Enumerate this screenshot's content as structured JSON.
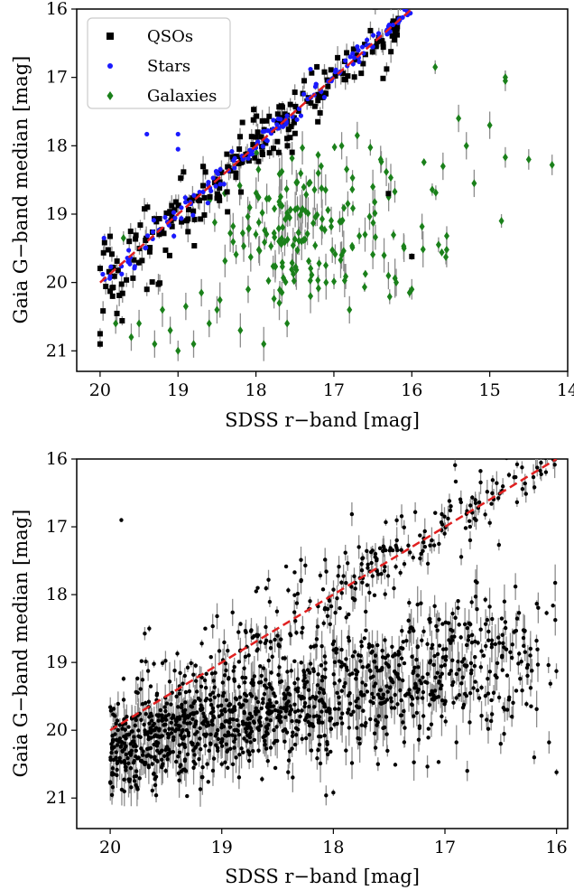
{
  "chart_data": [
    {
      "id": "top",
      "type": "scatter",
      "xlabel": "SDSS r−band [mag]",
      "ylabel": "Gaia G−band median [mag]",
      "xlim": [
        20.3,
        14.0
      ],
      "ylim": [
        21.3,
        16.0
      ],
      "x_ticks": [
        "20",
        "19",
        "18",
        "17",
        "16",
        "15",
        "14"
      ],
      "y_ticks": [
        "16",
        "17",
        "18",
        "19",
        "20",
        "21"
      ],
      "x_tick_values": [
        20,
        19,
        18,
        17,
        16,
        15,
        14
      ],
      "y_tick_values": [
        16,
        17,
        18,
        19,
        20,
        21
      ],
      "legend": {
        "placement": "top-left"
      },
      "reference_line": {
        "style": "dashed",
        "color": "#e02020",
        "points": [
          [
            20.0,
            20.0
          ],
          [
            16.0,
            16.0
          ]
        ]
      },
      "series": [
        {
          "name": "QSOs",
          "marker": "square",
          "color": "#000000",
          "generated": {
            "kind": "band",
            "count": 230,
            "x_range": [
              16.1,
              20.0
            ],
            "offset_spread": 0.38,
            "offset_bias": 0.05,
            "err_max": 0.18,
            "seed": 11
          },
          "points": [
            [
              20.0,
              20.75,
              0.08
            ],
            [
              20.0,
              20.9,
              0.06
            ],
            [
              16.0,
              19.62,
              0.05
            ],
            [
              16.3,
              18.7,
              0.07
            ],
            [
              19.4,
              20.1,
              0.1
            ]
          ]
        },
        {
          "name": "Stars",
          "marker": "dot",
          "color": "#1a1aff",
          "generated": {
            "kind": "band",
            "count": 150,
            "x_range": [
              16.0,
              19.98
            ],
            "offset_spread": 0.12,
            "offset_bias": 0.0,
            "err_max": 0.05,
            "seed": 23
          },
          "points": [
            [
              19.4,
              17.83,
              0.02
            ],
            [
              19.0,
              17.83,
              0.02
            ],
            [
              19.0,
              18.05,
              0.02
            ],
            [
              16.5,
              16.55,
              0.02
            ],
            [
              16.7,
              16.55,
              0.02
            ],
            [
              17.3,
              16.88,
              0.02
            ],
            [
              19.95,
              19.35,
              0.02
            ]
          ]
        },
        {
          "name": "Galaxies",
          "marker": "diamond",
          "color": "#1a801a",
          "generated": {
            "kind": "cluster",
            "count": 170,
            "center": [
              17.5,
              19.3
            ],
            "spread": [
              0.45,
              0.42
            ],
            "err_max": 0.3,
            "seed": 37
          },
          "points": [
            [
              15.7,
              16.85,
              0.1
            ],
            [
              14.8,
              17.05,
              0.15
            ],
            [
              14.8,
              17.0,
              0.1
            ],
            [
              15.4,
              17.6,
              0.2
            ],
            [
              14.5,
              18.2,
              0.15
            ],
            [
              14.2,
              18.28,
              0.15
            ],
            [
              14.8,
              18.17,
              0.15
            ],
            [
              15.0,
              17.7,
              0.2
            ],
            [
              15.3,
              18.0,
              0.2
            ],
            [
              15.6,
              18.3,
              0.2
            ],
            [
              15.2,
              18.55,
              0.2
            ],
            [
              14.85,
              19.1,
              0.1
            ],
            [
              16.0,
              20.1,
              0.15
            ],
            [
              16.1,
              19.5,
              0.2
            ],
            [
              16.4,
              18.2,
              0.2
            ],
            [
              16.7,
              17.85,
              0.2
            ],
            [
              16.5,
              18.6,
              0.25
            ],
            [
              16.9,
              18.0,
              0.2
            ],
            [
              17.2,
              18.4,
              0.3
            ],
            [
              16.3,
              19.9,
              0.2
            ],
            [
              16.6,
              19.3,
              0.25
            ],
            [
              16.8,
              20.4,
              0.2
            ],
            [
              17.1,
              20.0,
              0.25
            ],
            [
              18.5,
              20.4,
              0.2
            ],
            [
              18.9,
              20.35,
              0.2
            ],
            [
              19.2,
              20.4,
              0.25
            ],
            [
              19.5,
              20.6,
              0.2
            ],
            [
              19.8,
              20.6,
              0.15
            ],
            [
              19.6,
              20.8,
              0.2
            ],
            [
              19.3,
              20.9,
              0.2
            ],
            [
              18.6,
              20.6,
              0.2
            ],
            [
              18.2,
              20.7,
              0.25
            ],
            [
              17.9,
              20.9,
              0.25
            ],
            [
              18.8,
              20.9,
              0.2
            ],
            [
              19.1,
              20.7,
              0.2
            ],
            [
              19.0,
              21.0,
              0.15
            ],
            [
              17.7,
              20.3,
              0.25
            ],
            [
              18.1,
              20.1,
              0.2
            ],
            [
              17.3,
              20.2,
              0.25
            ],
            [
              17.6,
              20.6,
              0.2
            ],
            [
              19.7,
              19.35,
              0.1
            ],
            [
              18.7,
              20.15,
              0.2
            ],
            [
              16.2,
              20.0,
              0.2
            ],
            [
              16.9,
              19.6,
              0.2
            ]
          ]
        }
      ]
    },
    {
      "id": "bottom",
      "type": "scatter",
      "xlabel": "SDSS r−band [mag]",
      "ylabel": "Gaia G−band median [mag]",
      "xlim": [
        20.3,
        15.9
      ],
      "ylim": [
        21.45,
        16.0
      ],
      "x_ticks": [
        "20",
        "19",
        "18",
        "17",
        "16"
      ],
      "y_ticks": [
        "16",
        "17",
        "18",
        "19",
        "20",
        "21"
      ],
      "x_tick_values": [
        20,
        19,
        18,
        17,
        16
      ],
      "y_tick_values": [
        16,
        17,
        18,
        19,
        20,
        21
      ],
      "reference_line": {
        "style": "dashed",
        "color": "#e02020",
        "points": [
          [
            20.0,
            20.0
          ],
          [
            16.0,
            16.0
          ]
        ]
      },
      "series": [
        {
          "name": "",
          "marker": "dot",
          "color": "#000000",
          "generated": {
            "kind": "band",
            "count": 320,
            "x_range": [
              16.0,
              20.0
            ],
            "offset_spread": 0.45,
            "offset_bias": -0.05,
            "err_max": 0.2,
            "seed": 51
          },
          "points": []
        },
        {
          "name": "",
          "marker": "dot",
          "color": "#000000",
          "generated": {
            "kind": "linear-cluster",
            "count": 1200,
            "x_range": [
              16.0,
              20.0
            ],
            "y_at_x0": 20.3,
            "y_at_x1": 18.7,
            "x0": 20.0,
            "x1": 16.0,
            "spread": 0.42,
            "err_max": 0.3,
            "seed": 67
          },
          "points": [
            [
              19.9,
              16.9,
              0.03
            ],
            [
              19.0,
              20.5,
              0.05
            ],
            [
              18.0,
              20.92,
              0.05
            ],
            [
              17.6,
              20.5,
              0.1
            ],
            [
              16.0,
              20.62,
              0.05
            ],
            [
              19.65,
              18.5,
              0.05
            ],
            [
              16.2,
              20.4,
              0.1
            ],
            [
              16.5,
              20.2,
              0.15
            ],
            [
              16.8,
              20.6,
              0.15
            ],
            [
              16.4,
              19.8,
              0.15
            ]
          ]
        }
      ]
    }
  ]
}
